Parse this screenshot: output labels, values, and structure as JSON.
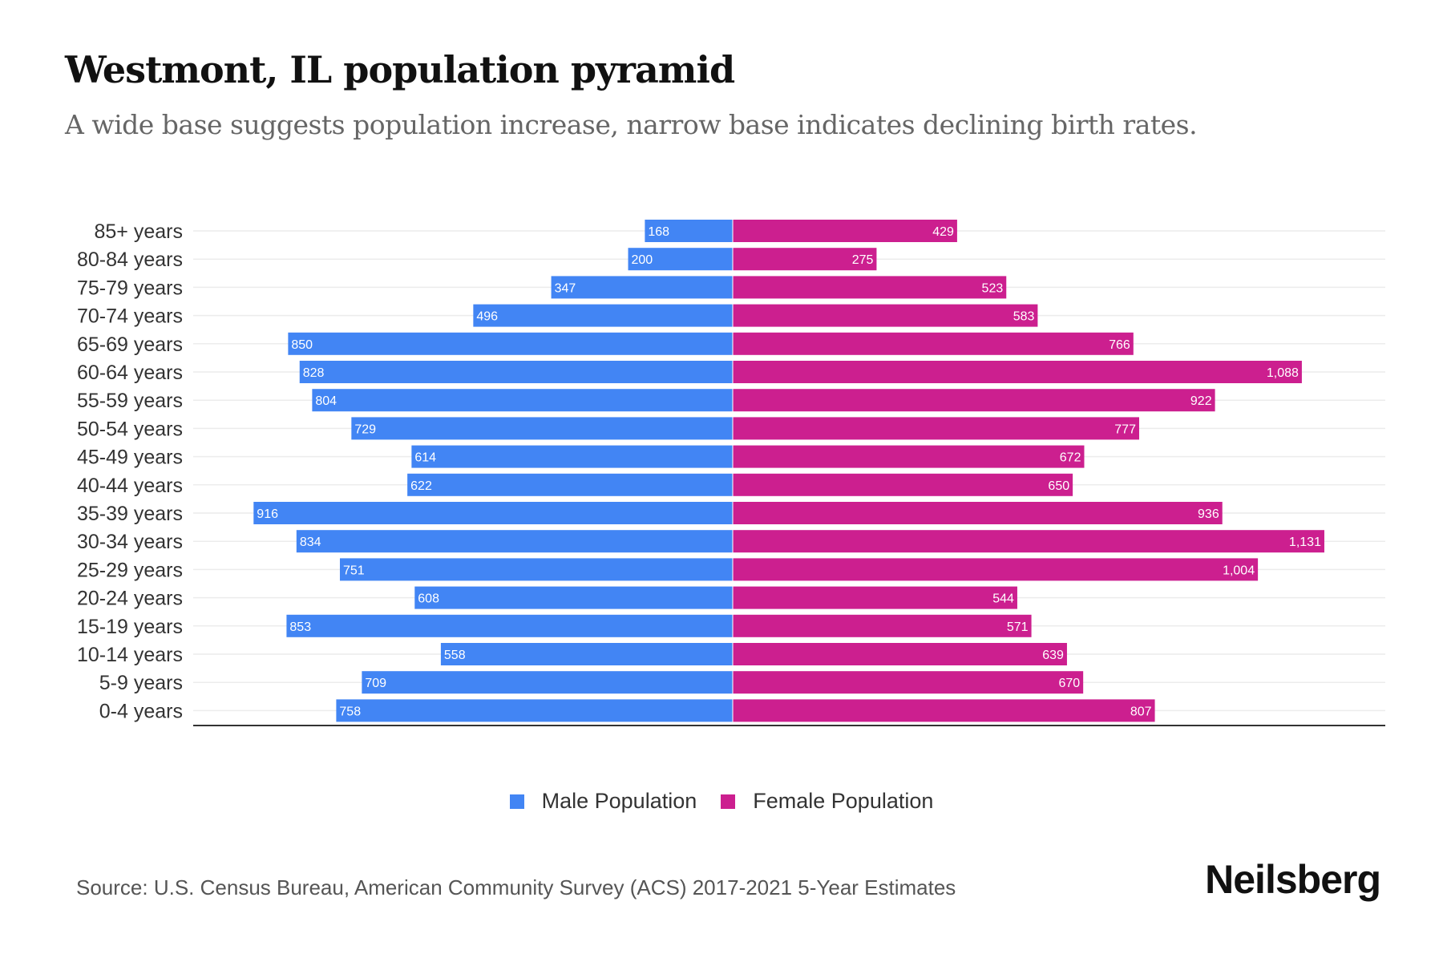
{
  "title": "Westmont, IL population pyramid",
  "subtitle": "A wide base suggests population increase, narrow base indicates declining birth rates.",
  "source": "Source: U.S. Census Bureau, American Community Survey (ACS) 2017-2021 5-Year Estimates",
  "brand": "Neilsberg",
  "colors": {
    "male": "#4285F4",
    "female": "#CC1F8F"
  },
  "chart_data": {
    "type": "bar",
    "orientation": "horizontal-pyramid",
    "categories": [
      "85+ years",
      "80-84 years",
      "75-79 years",
      "70-74 years",
      "65-69 years",
      "60-64 years",
      "55-59 years",
      "50-54 years",
      "45-49 years",
      "40-44 years",
      "35-39 years",
      "30-34 years",
      "25-29 years",
      "20-24 years",
      "15-19 years",
      "10-14 years",
      "5-9 years",
      "0-4 years"
    ],
    "series": [
      {
        "name": "Male Population",
        "values": [
          168,
          200,
          347,
          496,
          850,
          828,
          804,
          729,
          614,
          622,
          916,
          834,
          751,
          608,
          853,
          558,
          709,
          758
        ],
        "labels": [
          "168",
          "200",
          "347",
          "496",
          "850",
          "828",
          "804",
          "729",
          "614",
          "622",
          "916",
          "834",
          "751",
          "608",
          "853",
          "558",
          "709",
          "758"
        ]
      },
      {
        "name": "Female Population",
        "values": [
          429,
          275,
          523,
          583,
          766,
          1088,
          922,
          777,
          672,
          650,
          936,
          1131,
          1004,
          544,
          571,
          639,
          670,
          807
        ],
        "labels": [
          "429",
          "275",
          "523",
          "583",
          "766",
          "1,088",
          "922",
          "777",
          "672",
          "650",
          "936",
          "1,131",
          "1,004",
          "544",
          "571",
          "639",
          "670",
          "807"
        ]
      }
    ],
    "legend": "bottom-center",
    "grid": true
  }
}
